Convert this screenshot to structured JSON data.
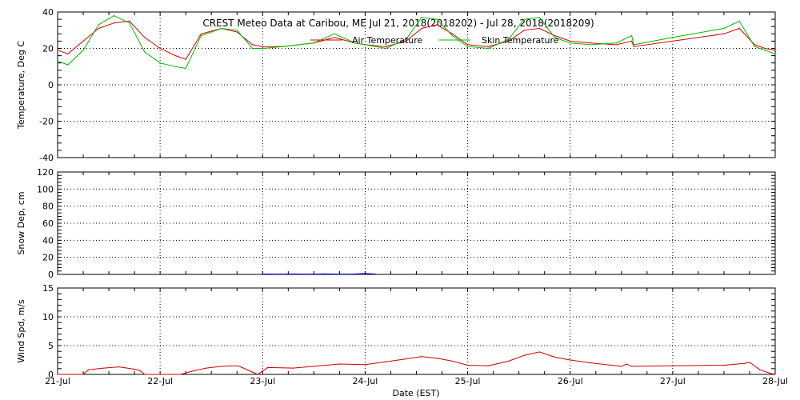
{
  "chart_data": [
    {
      "type": "line",
      "title": "CREST Meteo Data at Caribou, ME   Jul 21, 2018(2018202) - Jul 28, 2018(2018209)",
      "ylabel": "Temperature, Deg C",
      "ylim": [
        -40,
        40
      ],
      "yticks": [
        "40",
        "20",
        "0",
        "-20",
        "-40"
      ],
      "legend_position": "top-center",
      "grid": true,
      "x": [
        21.0,
        21.1,
        21.25,
        21.4,
        21.55,
        21.7,
        21.85,
        22.0,
        22.15,
        22.25,
        22.4,
        22.6,
        22.75,
        22.9,
        23.0,
        23.2,
        23.5,
        23.7,
        23.9,
        24.0,
        24.2,
        24.4,
        24.55,
        24.7,
        24.85,
        25.0,
        25.2,
        25.4,
        25.55,
        25.7,
        25.85,
        26.0,
        26.2,
        26.45,
        26.6,
        26.62,
        27.0,
        27.5,
        27.65,
        27.8,
        27.9,
        28.0
      ],
      "series": [
        {
          "name": "Air Temperature",
          "color": "#dd0000",
          "values": [
            19,
            17,
            24,
            31,
            34,
            35,
            26,
            20,
            16,
            14,
            28,
            31,
            29,
            22,
            21,
            21,
            23,
            26,
            23,
            22,
            21,
            24,
            31,
            33,
            28,
            22,
            21,
            24,
            30,
            31,
            27,
            24,
            23,
            22,
            24,
            21,
            24,
            28,
            31,
            22,
            20,
            19
          ]
        },
        {
          "name": "Skin Temperature",
          "color": "#00bb00",
          "values": [
            13,
            11,
            19,
            33,
            38,
            34,
            18,
            12,
            10,
            9,
            27,
            31,
            30,
            20,
            20,
            21,
            23,
            28,
            23,
            22,
            20,
            25,
            37,
            36,
            27,
            21,
            20,
            25,
            36,
            37,
            26,
            23,
            22,
            23,
            27,
            22,
            26,
            31,
            35,
            21,
            19,
            17
          ]
        }
      ]
    },
    {
      "type": "line",
      "ylabel": "Snow Dep, cm",
      "ylim": [
        0,
        120
      ],
      "yticks": [
        "120",
        "100",
        "80",
        "60",
        "40",
        "20",
        "0"
      ],
      "grid": true,
      "x": [
        23.0,
        23.15,
        23.3,
        23.45,
        23.6,
        23.75,
        23.9,
        24.0,
        24.1
      ],
      "series": [
        {
          "name": "",
          "color": "#0000cc",
          "values": [
            0.5,
            0.4,
            0.5,
            0.4,
            0.6,
            0.4,
            0.5,
            1.0,
            0.5
          ]
        }
      ]
    },
    {
      "type": "line",
      "ylabel": "Wind Spd, m/s",
      "ylim": [
        0,
        15
      ],
      "yticks": [
        "15",
        "10",
        "5",
        "0"
      ],
      "xlabel": "Date (EST)",
      "xticks": [
        "21-Jul",
        "22-Jul",
        "23-Jul",
        "24-Jul",
        "25-Jul",
        "26-Jul",
        "27-Jul",
        "28-Jul"
      ],
      "grid": true,
      "x": [
        21.0,
        21.25,
        21.3,
        21.45,
        21.6,
        21.75,
        21.8,
        21.85,
        22.2,
        22.3,
        22.45,
        22.6,
        22.75,
        22.8,
        22.95,
        23.05,
        23.3,
        23.5,
        23.75,
        24.0,
        24.2,
        24.4,
        24.55,
        24.7,
        24.85,
        25.0,
        25.2,
        25.4,
        25.55,
        25.7,
        25.85,
        26.0,
        26.2,
        26.4,
        26.5,
        26.55,
        26.6,
        27.0,
        27.5,
        27.7,
        27.75,
        27.85,
        27.95,
        28.0
      ],
      "series": [
        {
          "name": "",
          "color": "#cc0000",
          "values": [
            0,
            0,
            0.8,
            1.1,
            1.3,
            0.9,
            0.7,
            0,
            0,
            0.5,
            1.1,
            1.4,
            1.5,
            1.2,
            0,
            1.2,
            1.1,
            1.4,
            1.8,
            1.7,
            2.2,
            2.7,
            3.1,
            2.8,
            2.3,
            1.6,
            1.5,
            2.3,
            3.3,
            3.9,
            3.0,
            2.5,
            2.0,
            1.6,
            1.4,
            1.8,
            1.4,
            1.5,
            1.6,
            1.9,
            2.1,
            0.8,
            0.2,
            0
          ]
        }
      ]
    }
  ]
}
